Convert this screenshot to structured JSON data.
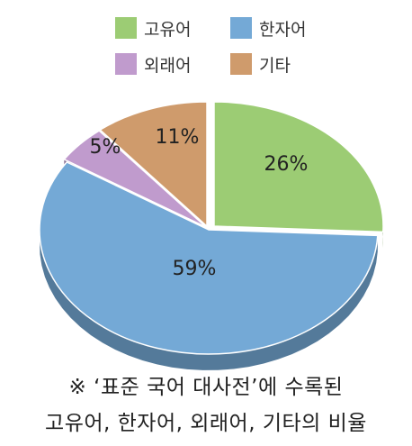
{
  "chart_data": {
    "type": "pie",
    "categories": [
      "고유어",
      "한자어",
      "외래어",
      "기타"
    ],
    "values": [
      26,
      59,
      5,
      11
    ],
    "value_labels": [
      "26%",
      "59%",
      "5%",
      "11%"
    ],
    "colors": [
      "#9ccc74",
      "#74a9d6",
      "#c09bcd",
      "#cf9b6c"
    ],
    "legend_position": "top",
    "style": "3d"
  },
  "caption": {
    "line1": "※ ‘표준 국어 대사전’에 수록된",
    "line2": "고유어, 한자어, 외래어, 기타의 비율"
  }
}
